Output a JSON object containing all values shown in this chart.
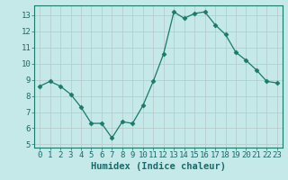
{
  "x": [
    0,
    1,
    2,
    3,
    4,
    5,
    6,
    7,
    8,
    9,
    10,
    11,
    12,
    13,
    14,
    15,
    16,
    17,
    18,
    19,
    20,
    21,
    22,
    23
  ],
  "y": [
    8.6,
    8.9,
    8.6,
    8.1,
    7.3,
    6.3,
    6.3,
    5.4,
    6.4,
    6.3,
    7.4,
    8.9,
    10.6,
    13.2,
    12.8,
    13.1,
    13.2,
    12.4,
    11.8,
    10.7,
    10.2,
    9.6,
    8.9,
    8.8
  ],
  "line_color": "#1a7a6a",
  "marker": "D",
  "marker_size": 2.5,
  "bg_color": "#c5e8e8",
  "grid_color": "#b8c8c8",
  "xlabel": "Humidex (Indice chaleur)",
  "xlabel_fontsize": 7.5,
  "ylim": [
    4.8,
    13.6
  ],
  "xlim": [
    -0.5,
    23.5
  ],
  "yticks": [
    5,
    6,
    7,
    8,
    9,
    10,
    11,
    12,
    13
  ],
  "xticks": [
    0,
    1,
    2,
    3,
    4,
    5,
    6,
    7,
    8,
    9,
    10,
    11,
    12,
    13,
    14,
    15,
    16,
    17,
    18,
    19,
    20,
    21,
    22,
    23
  ],
  "tick_fontsize": 6.5,
  "linewidth": 0.9
}
